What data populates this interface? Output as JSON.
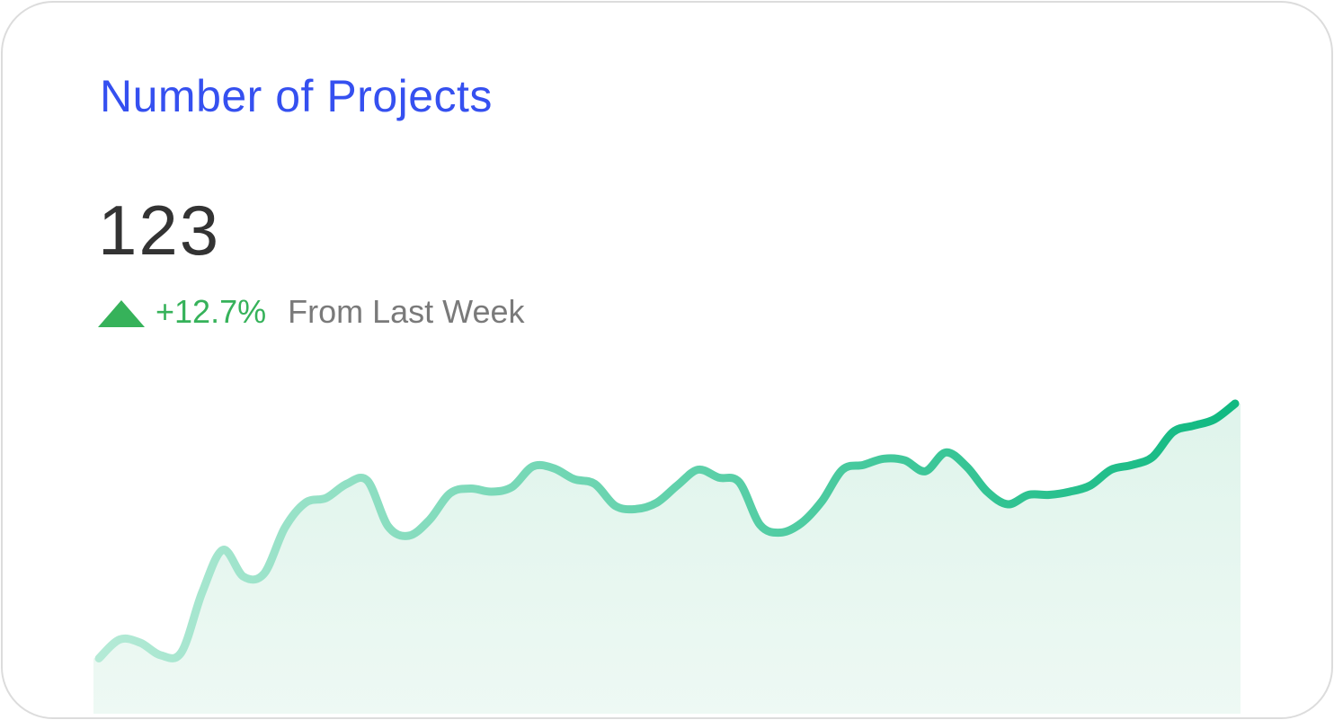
{
  "card": {
    "title": "Number of Projects",
    "value": "123",
    "change": "+12.7%",
    "change_label": "From Last Week",
    "trend_icon": "triangle-up-icon"
  },
  "colors": {
    "title": "#3550f0",
    "value": "#333333",
    "positive": "#36b25a",
    "line_start": "#b4ead6",
    "line_end": "#10b981",
    "area": "#e3f5ee",
    "border": "#dcdcdc"
  },
  "chart_data": {
    "type": "area",
    "title": "",
    "xlabel": "",
    "ylabel": "",
    "grid": false,
    "legend": "none",
    "x": [
      0,
      1,
      2,
      3,
      4,
      5,
      6,
      7,
      8,
      9,
      10,
      11,
      12,
      13,
      14,
      15,
      16,
      17,
      18,
      19,
      20,
      21,
      22,
      23,
      24,
      25,
      26,
      27,
      28,
      29,
      30,
      31,
      32,
      33,
      34,
      35,
      36,
      37,
      38,
      39,
      40,
      41,
      42,
      43,
      44,
      45,
      46,
      47,
      48,
      49,
      50,
      51,
      52,
      53,
      54,
      55
    ],
    "series": [
      {
        "values": [
          2,
          14,
          12,
          4,
          6,
          44,
          71,
          54,
          56,
          85,
          101,
          104,
          113,
          115,
          86,
          80,
          90,
          107,
          110,
          108,
          111,
          124,
          123,
          116,
          113,
          99,
          97,
          101,
          112,
          122,
          117,
          114,
          87,
          82,
          88,
          102,
          122,
          125,
          129,
          128,
          121,
          133,
          124,
          108,
          100,
          106,
          106,
          108,
          112,
          122,
          125,
          130,
          146,
          150,
          154,
          164
        ]
      }
    ],
    "ylim": [
      0,
      220
    ]
  }
}
